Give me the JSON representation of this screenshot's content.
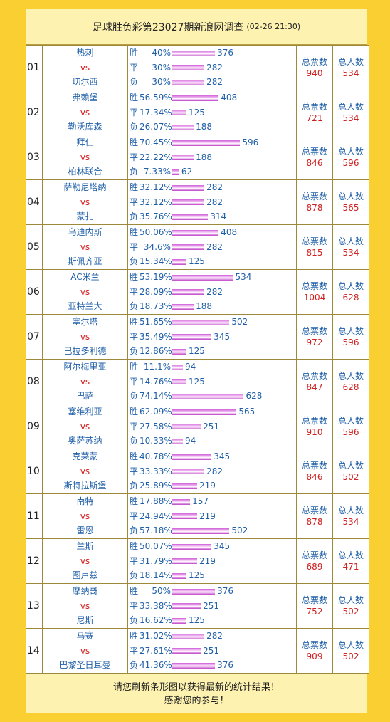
{
  "header": {
    "title": "足球胜负彩第23027期新浪网调查",
    "time": "(02-26 21:30)"
  },
  "rows": [
    {
      "no": "01",
      "home": "热刺",
      "vs": "vs",
      "away": "切尔西",
      "outcomes": [
        {
          "label": "胜",
          "pct": "40%",
          "count": 376
        },
        {
          "label": "平",
          "pct": "30%",
          "count": 282
        },
        {
          "label": "负",
          "pct": "30%",
          "count": 282
        }
      ],
      "votes_label": "总票数",
      "votes": 940,
      "people_label": "总人数",
      "people": 534
    },
    {
      "no": "02",
      "home": "弗赖堡",
      "vs": "vs",
      "away": "勒沃库森",
      "outcomes": [
        {
          "label": "胜",
          "pct": "56.59%",
          "count": 408
        },
        {
          "label": "平",
          "pct": "17.34%",
          "count": 125
        },
        {
          "label": "负",
          "pct": "26.07%",
          "count": 188
        }
      ],
      "votes_label": "总票数",
      "votes": 721,
      "people_label": "总人数",
      "people": 534
    },
    {
      "no": "03",
      "home": "拜仁",
      "vs": "vs",
      "away": "柏林联合",
      "outcomes": [
        {
          "label": "胜",
          "pct": "70.45%",
          "count": 596
        },
        {
          "label": "平",
          "pct": "22.22%",
          "count": 188
        },
        {
          "label": "负",
          "pct": "7.33%",
          "count": 62
        }
      ],
      "votes_label": "总票数",
      "votes": 846,
      "people_label": "总人数",
      "people": 596
    },
    {
      "no": "04",
      "home": "萨勒尼塔纳",
      "vs": "vs",
      "away": "蒙扎",
      "outcomes": [
        {
          "label": "胜",
          "pct": "32.12%",
          "count": 282
        },
        {
          "label": "平",
          "pct": "32.12%",
          "count": 282
        },
        {
          "label": "负",
          "pct": "35.76%",
          "count": 314
        }
      ],
      "votes_label": "总票数",
      "votes": 878,
      "people_label": "总人数",
      "people": 565
    },
    {
      "no": "05",
      "home": "乌迪内斯",
      "vs": "vs",
      "away": "斯佩齐亚",
      "outcomes": [
        {
          "label": "胜",
          "pct": "50.06%",
          "count": 408
        },
        {
          "label": "平",
          "pct": "34.6%",
          "count": 282
        },
        {
          "label": "负",
          "pct": "15.34%",
          "count": 125
        }
      ],
      "votes_label": "总票数",
      "votes": 815,
      "people_label": "总人数",
      "people": 534
    },
    {
      "no": "06",
      "home": "AC米兰",
      "vs": "vs",
      "away": "亚特兰大",
      "outcomes": [
        {
          "label": "胜",
          "pct": "53.19%",
          "count": 534
        },
        {
          "label": "平",
          "pct": "28.09%",
          "count": 282
        },
        {
          "label": "负",
          "pct": "18.73%",
          "count": 188
        }
      ],
      "votes_label": "总票数",
      "votes": 1004,
      "people_label": "总人数",
      "people": 628
    },
    {
      "no": "07",
      "home": "塞尔塔",
      "vs": "vs",
      "away": "巴拉多利德",
      "outcomes": [
        {
          "label": "胜",
          "pct": "51.65%",
          "count": 502
        },
        {
          "label": "平",
          "pct": "35.49%",
          "count": 345
        },
        {
          "label": "负",
          "pct": "12.86%",
          "count": 125
        }
      ],
      "votes_label": "总票数",
      "votes": 972,
      "people_label": "总人数",
      "people": 596
    },
    {
      "no": "08",
      "home": "阿尔梅里亚",
      "vs": "vs",
      "away": "巴萨",
      "outcomes": [
        {
          "label": "胜",
          "pct": "11.1%",
          "count": 94
        },
        {
          "label": "平",
          "pct": "14.76%",
          "count": 125
        },
        {
          "label": "负",
          "pct": "74.14%",
          "count": 628
        }
      ],
      "votes_label": "总票数",
      "votes": 847,
      "people_label": "总人数",
      "people": 628
    },
    {
      "no": "09",
      "home": "塞维利亚",
      "vs": "vs",
      "away": "奥萨苏纳",
      "outcomes": [
        {
          "label": "胜",
          "pct": "62.09%",
          "count": 565
        },
        {
          "label": "平",
          "pct": "27.58%",
          "count": 251
        },
        {
          "label": "负",
          "pct": "10.33%",
          "count": 94
        }
      ],
      "votes_label": "总票数",
      "votes": 910,
      "people_label": "总人数",
      "people": 596
    },
    {
      "no": "10",
      "home": "克莱蒙",
      "vs": "vs",
      "away": "斯特拉斯堡",
      "outcomes": [
        {
          "label": "胜",
          "pct": "40.78%",
          "count": 345
        },
        {
          "label": "平",
          "pct": "33.33%",
          "count": 282
        },
        {
          "label": "负",
          "pct": "25.89%",
          "count": 219
        }
      ],
      "votes_label": "总票数",
      "votes": 846,
      "people_label": "总人数",
      "people": 502
    },
    {
      "no": "11",
      "home": "南特",
      "vs": "vs",
      "away": "雷恩",
      "outcomes": [
        {
          "label": "胜",
          "pct": "17.88%",
          "count": 157
        },
        {
          "label": "平",
          "pct": "24.94%",
          "count": 219
        },
        {
          "label": "负",
          "pct": "57.18%",
          "count": 502
        }
      ],
      "votes_label": "总票数",
      "votes": 878,
      "people_label": "总人数",
      "people": 534
    },
    {
      "no": "12",
      "home": "兰斯",
      "vs": "vs",
      "away": "图卢兹",
      "outcomes": [
        {
          "label": "胜",
          "pct": "50.07%",
          "count": 345
        },
        {
          "label": "平",
          "pct": "31.79%",
          "count": 219
        },
        {
          "label": "负",
          "pct": "18.14%",
          "count": 125
        }
      ],
      "votes_label": "总票数",
      "votes": 689,
      "people_label": "总人数",
      "people": 471
    },
    {
      "no": "13",
      "home": "摩纳哥",
      "vs": "vs",
      "away": "尼斯",
      "outcomes": [
        {
          "label": "胜",
          "pct": "50%",
          "count": 376
        },
        {
          "label": "平",
          "pct": "33.38%",
          "count": 251
        },
        {
          "label": "负",
          "pct": "16.62%",
          "count": 125
        }
      ],
      "votes_label": "总票数",
      "votes": 752,
      "people_label": "总人数",
      "people": 502
    },
    {
      "no": "14",
      "home": "马赛",
      "vs": "vs",
      "away": "巴黎圣日耳曼",
      "outcomes": [
        {
          "label": "胜",
          "pct": "31.02%",
          "count": 282
        },
        {
          "label": "平",
          "pct": "27.61%",
          "count": 251
        },
        {
          "label": "负",
          "pct": "41.36%",
          "count": 376
        }
      ],
      "votes_label": "总票数",
      "votes": 909,
      "people_label": "总人数",
      "people": 502
    }
  ],
  "footer": {
    "lines": [
      "请您刷新条形图以获得最新的统计结果！",
      "感谢您的参与！"
    ]
  }
}
